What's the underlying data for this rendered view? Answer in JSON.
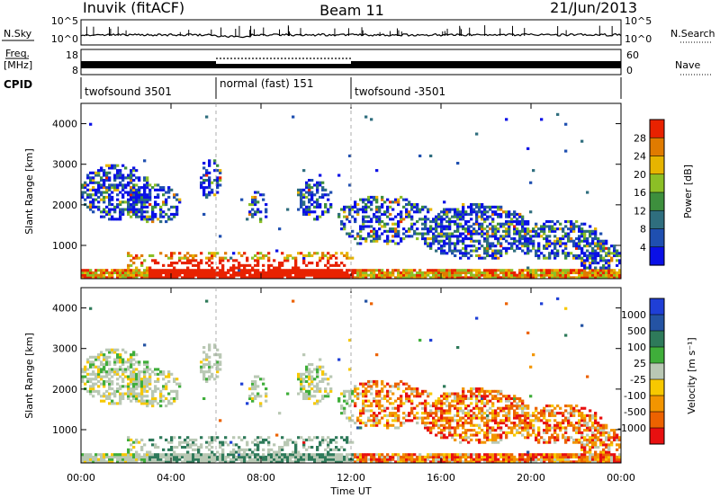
{
  "header": {
    "title": "Inuvik (fitACF)",
    "beam": "Beam 11",
    "date": "21/Jun/2013"
  },
  "top_panels": {
    "nsky_label": "N.Sky",
    "nsearch_label": "N.Search",
    "noise_ticks": [
      "10^5",
      "10^0"
    ],
    "freq_label_line1": "Freq.",
    "freq_label_line2": "[MHz]",
    "freq_ticks": [
      "18",
      "8"
    ],
    "nave_label": "Nave",
    "nave_ticks": [
      "60",
      "0"
    ],
    "cpid_label": "CPID",
    "cpid_segments": [
      {
        "label": "twofsound 3501",
        "start_hour": 0,
        "end_hour": 6
      },
      {
        "label": "normal (fast) 151",
        "start_hour": 6,
        "end_hour": 12
      },
      {
        "label": "twofsound -3501",
        "start_hour": 12,
        "end_hour": 24
      }
    ]
  },
  "colors": {
    "power_scale": [
      "#0a10e6",
      "#1f4fb0",
      "#2f6e7e",
      "#3d8f3d",
      "#8cbf26",
      "#e6b400",
      "#e07b00",
      "#e82200"
    ],
    "velocity_scale": [
      "#1f3fd6",
      "#2453a3",
      "#2e7a5a",
      "#3fae3a",
      "#b9c8b4",
      "#f7c800",
      "#f29500",
      "#ec6200",
      "#e81010"
    ]
  },
  "chart_data": [
    {
      "type": "heatmap",
      "name": "power",
      "xlabel": "Time UT",
      "ylabel": "Slant Range [km]",
      "xlim": [
        0,
        24
      ],
      "ylim": [
        180,
        4500
      ],
      "x_ticks": [
        "00:00",
        "04:00",
        "08:00",
        "12:00",
        "16:00",
        "20:00",
        "00:00"
      ],
      "y_ticks": [
        "1000",
        "2000",
        "3000",
        "4000"
      ],
      "colorbar_label": "Power [dB]",
      "colorbar_ticks": [
        "4",
        "8",
        "12",
        "16",
        "20",
        "24",
        "28"
      ],
      "colorbar_range": [
        0,
        32
      ]
    },
    {
      "type": "heatmap",
      "name": "velocity",
      "xlabel": "Time UT",
      "ylabel": "Slant Range [km]",
      "xlim": [
        0,
        24
      ],
      "ylim": [
        180,
        4500
      ],
      "x_ticks": [
        "00:00",
        "04:00",
        "08:00",
        "12:00",
        "16:00",
        "20:00",
        "00:00"
      ],
      "y_ticks": [
        "1000",
        "2000",
        "3000",
        "4000"
      ],
      "colorbar_label": "Velocity [m s⁻¹]",
      "colorbar_ticks": [
        "1000",
        "500",
        "100",
        "25",
        "-25",
        "-100",
        "-500",
        "-1000"
      ]
    }
  ]
}
